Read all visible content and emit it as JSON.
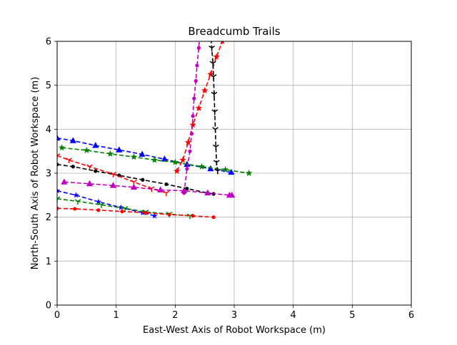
{
  "chart_data": {
    "type": "line",
    "title": "Breadcumb Trails",
    "xlabel": "East-West Axis of Robot Workspace (m)",
    "ylabel": "North-South Axis of Robot Workspace (m)",
    "xlim": [
      0,
      6
    ],
    "ylim": [
      0,
      6
    ],
    "xticks": [
      "0",
      "1",
      "2",
      "3",
      "4",
      "5",
      "6"
    ],
    "yticks": [
      "0",
      "1",
      "2",
      "3",
      "4",
      "5",
      "6"
    ],
    "grid": true,
    "series": [
      {
        "color": "#0000ff",
        "marker": "triangle",
        "points": [
          [
            0.0,
            3.8
          ],
          [
            0.27,
            3.74
          ],
          [
            0.65,
            3.63
          ],
          [
            1.05,
            3.53
          ],
          [
            1.44,
            3.43
          ],
          [
            1.82,
            3.32
          ],
          [
            2.2,
            3.2
          ],
          [
            2.6,
            3.1
          ],
          [
            2.95,
            3.02
          ]
        ]
      },
      {
        "color": "#008000",
        "marker": "star",
        "points": [
          [
            0.08,
            3.58
          ],
          [
            0.5,
            3.52
          ],
          [
            0.9,
            3.44
          ],
          [
            1.3,
            3.37
          ],
          [
            1.65,
            3.3
          ],
          [
            2.0,
            3.25
          ],
          [
            2.45,
            3.15
          ],
          [
            2.85,
            3.08
          ],
          [
            3.25,
            3.0
          ]
        ]
      },
      {
        "color": "#000000",
        "marker": "dot",
        "points": [
          [
            0.0,
            3.2
          ],
          [
            0.27,
            3.15
          ],
          [
            0.65,
            3.05
          ],
          [
            1.05,
            2.95
          ],
          [
            1.45,
            2.85
          ],
          [
            1.85,
            2.75
          ],
          [
            2.2,
            2.65
          ],
          [
            2.55,
            2.55
          ],
          [
            2.65,
            2.53
          ]
        ]
      },
      {
        "color": "#ff0000",
        "marker": "tri_down",
        "points": [
          [
            0.0,
            3.4
          ],
          [
            0.2,
            3.3
          ],
          [
            0.55,
            3.15
          ],
          [
            0.95,
            2.98
          ],
          [
            1.3,
            2.8
          ],
          [
            1.6,
            2.65
          ],
          [
            1.85,
            2.55
          ]
        ]
      },
      {
        "color": "#c000c0",
        "marker": "triangle",
        "points": [
          [
            0.12,
            2.8
          ],
          [
            0.55,
            2.76
          ],
          [
            0.95,
            2.72
          ],
          [
            1.3,
            2.68
          ],
          [
            1.75,
            2.62
          ],
          [
            2.15,
            2.6
          ],
          [
            2.55,
            2.55
          ],
          [
            2.92,
            2.5
          ],
          [
            2.96,
            2.5
          ]
        ]
      },
      {
        "color": "#0000ff",
        "marker": "star_thin",
        "points": [
          [
            0.0,
            2.6
          ],
          [
            0.32,
            2.5
          ],
          [
            0.7,
            2.35
          ],
          [
            1.08,
            2.22
          ],
          [
            1.45,
            2.1
          ],
          [
            1.65,
            2.03
          ]
        ]
      },
      {
        "color": "#008000",
        "marker": "tri_down",
        "points": [
          [
            0.0,
            2.42
          ],
          [
            0.35,
            2.36
          ],
          [
            0.75,
            2.28
          ],
          [
            1.15,
            2.2
          ],
          [
            1.5,
            2.12
          ],
          [
            1.9,
            2.07
          ],
          [
            2.25,
            2.03
          ]
        ]
      },
      {
        "color": "#ff0000",
        "marker": "dot",
        "points": [
          [
            0.0,
            2.2
          ],
          [
            0.3,
            2.19
          ],
          [
            0.7,
            2.16
          ],
          [
            1.1,
            2.13
          ],
          [
            1.5,
            2.1
          ],
          [
            1.9,
            2.06
          ],
          [
            2.3,
            2.03
          ],
          [
            2.65,
            2.0
          ]
        ]
      },
      {
        "color": "#ff0000",
        "marker": "star",
        "points": [
          [
            2.03,
            3.05
          ],
          [
            2.13,
            3.3
          ],
          [
            2.22,
            3.7
          ],
          [
            2.3,
            4.1
          ],
          [
            2.4,
            4.48
          ],
          [
            2.5,
            4.88
          ],
          [
            2.6,
            5.25
          ],
          [
            2.7,
            5.65
          ],
          [
            2.8,
            6.0
          ],
          [
            2.83,
            6.1
          ]
        ]
      },
      {
        "color": "#c000c0",
        "marker": "dot",
        "points": [
          [
            2.15,
            2.55
          ],
          [
            2.2,
            3.1
          ],
          [
            2.25,
            3.5
          ],
          [
            2.28,
            3.9
          ],
          [
            2.3,
            4.3
          ],
          [
            2.32,
            4.7
          ],
          [
            2.35,
            5.1
          ],
          [
            2.37,
            5.45
          ],
          [
            2.4,
            5.85
          ],
          [
            2.42,
            6.2
          ]
        ]
      },
      {
        "color": "#000000",
        "marker": "tri_down",
        "points": [
          [
            2.6,
            6.2
          ],
          [
            2.62,
            5.85
          ],
          [
            2.64,
            5.5
          ],
          [
            2.65,
            5.2
          ],
          [
            2.66,
            4.8
          ],
          [
            2.67,
            4.4
          ],
          [
            2.68,
            4.0
          ],
          [
            2.69,
            3.6
          ],
          [
            2.7,
            3.25
          ],
          [
            2.72,
            3.05
          ]
        ]
      }
    ]
  }
}
